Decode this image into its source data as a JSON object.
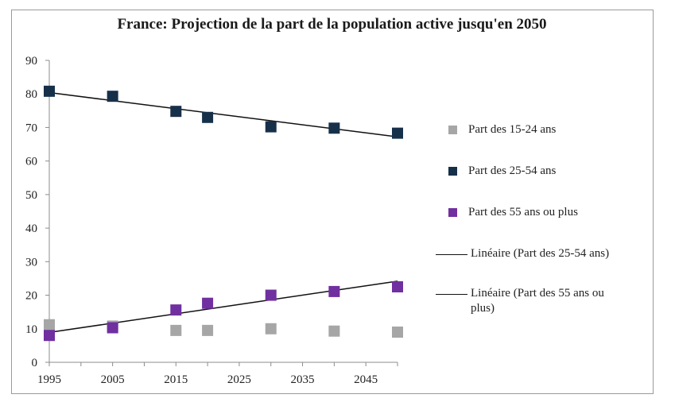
{
  "chart_data": {
    "type": "scatter",
    "title": "France: Projection de la part de la population active jusqu'en 2050",
    "xlabel": "",
    "ylabel": "",
    "xlim": [
      1995,
      2050
    ],
    "ylim": [
      0,
      90
    ],
    "xticks": [
      1995,
      2005,
      2015,
      2025,
      2035,
      2045
    ],
    "yticks": [
      0,
      10,
      20,
      30,
      40,
      50,
      60,
      70,
      80,
      90
    ],
    "grid": false,
    "legend_position": "right",
    "series": [
      {
        "name": "Part des 15-24 ans",
        "color": "#a6a6a6",
        "points": [
          [
            1995,
            11.2
          ],
          [
            2005,
            10.8
          ],
          [
            2015,
            9.5
          ],
          [
            2020,
            9.5
          ],
          [
            2030,
            10.0
          ],
          [
            2040,
            9.3
          ],
          [
            2050,
            9.0
          ]
        ]
      },
      {
        "name": "Part des 25-54 ans",
        "color": "#17304a",
        "points": [
          [
            1995,
            80.8
          ],
          [
            2005,
            79.3
          ],
          [
            2015,
            74.8
          ],
          [
            2020,
            73.0
          ],
          [
            2030,
            70.2
          ],
          [
            2040,
            69.8
          ],
          [
            2050,
            68.3
          ]
        ]
      },
      {
        "name": "Part des 55 ans ou plus",
        "color": "#7030a0",
        "points": [
          [
            1995,
            8.0
          ],
          [
            2005,
            10.3
          ],
          [
            2015,
            15.6
          ],
          [
            2020,
            17.6
          ],
          [
            2030,
            20.0
          ],
          [
            2040,
            21.1
          ],
          [
            2050,
            22.5
          ]
        ]
      }
    ],
    "trendlines": [
      {
        "name": "Linéaire (Part des 25-54 ans)",
        "color": "#111111",
        "from": [
          1995,
          80.4
        ],
        "to": [
          2050,
          67.2
        ]
      },
      {
        "name": "Linéaire (Part des 55 ans ou plus)",
        "color": "#111111",
        "from": [
          1995,
          8.9
        ],
        "to": [
          2050,
          24.2
        ]
      }
    ]
  }
}
